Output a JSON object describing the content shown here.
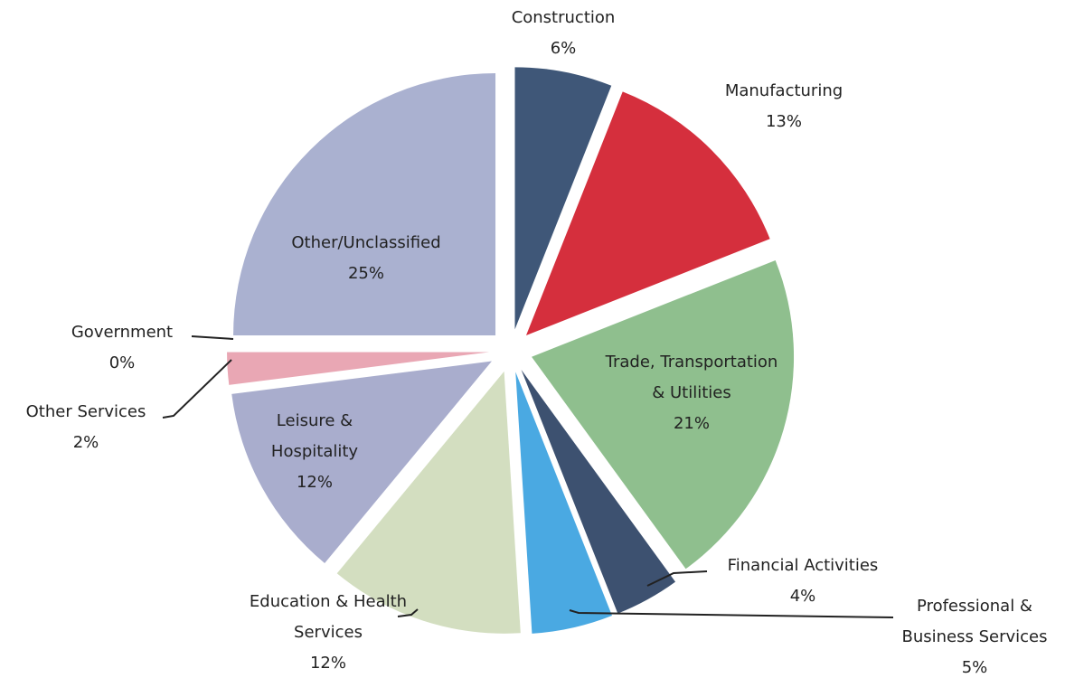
{
  "chart_data": {
    "type": "pie",
    "categories": [
      "Construction",
      "Manufacturing",
      "Trade, Transportation & Utilities",
      "Financial Activities",
      "Professional & Business Services",
      "Education & Health Services",
      "Leisure & Hospitality",
      "Other Services",
      "Government",
      "Other/Unclassified"
    ],
    "values": [
      6,
      13,
      21,
      4,
      5,
      12,
      12,
      2,
      0,
      25
    ],
    "value_labels": [
      "6%",
      "13%",
      "21%",
      "4%",
      "5%",
      "12%",
      "12%",
      "2%",
      "0%",
      "25%"
    ],
    "colors": [
      "#3f5778",
      "#d52f3d",
      "#8fbf8e",
      "#3d5170",
      "#4aa9e2",
      "#d3dec0",
      "#a9adcd",
      "#e9a7b4",
      "#c9e3c9",
      "#aab1d0"
    ]
  }
}
